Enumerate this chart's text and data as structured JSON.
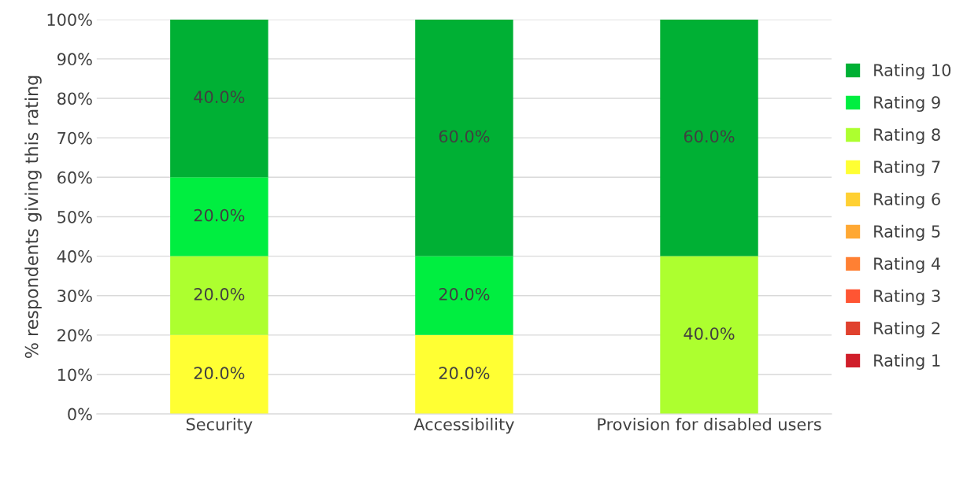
{
  "chart_data": {
    "type": "bar",
    "stacked": true,
    "ylabel": "% respondents giving this rating",
    "categories": [
      "Security",
      "Accessibility",
      "Provision for disabled users"
    ],
    "ylim": [
      0,
      100
    ],
    "yticks": [
      {
        "value": 0,
        "label": "0%"
      },
      {
        "value": 10,
        "label": "10%"
      },
      {
        "value": 20,
        "label": "20%"
      },
      {
        "value": 30,
        "label": "30%"
      },
      {
        "value": 40,
        "label": "40%"
      },
      {
        "value": 50,
        "label": "50%"
      },
      {
        "value": 60,
        "label": "60%"
      },
      {
        "value": 70,
        "label": "70%"
      },
      {
        "value": 80,
        "label": "80%"
      },
      {
        "value": 90,
        "label": "90%"
      },
      {
        "value": 100,
        "label": "100%"
      }
    ],
    "grid": "y",
    "legend": "right",
    "series": [
      {
        "name": "Rating 1",
        "color": "#d01e2a",
        "values": [
          0,
          0,
          0
        ],
        "value_labels": [
          null,
          null,
          null
        ]
      },
      {
        "name": "Rating 2",
        "color": "#e0412e",
        "values": [
          0,
          0,
          0
        ],
        "value_labels": [
          null,
          null,
          null
        ]
      },
      {
        "name": "Rating 3",
        "color": "#ff5533",
        "values": [
          0,
          0,
          0
        ],
        "value_labels": [
          null,
          null,
          null
        ]
      },
      {
        "name": "Rating 4",
        "color": "#ff8033",
        "values": [
          0,
          0,
          0
        ],
        "value_labels": [
          null,
          null,
          null
        ]
      },
      {
        "name": "Rating 5",
        "color": "#ffa833",
        "values": [
          0,
          0,
          0
        ],
        "value_labels": [
          null,
          null,
          null
        ]
      },
      {
        "name": "Rating 6",
        "color": "#ffd033",
        "values": [
          0,
          0,
          0
        ],
        "value_labels": [
          null,
          null,
          null
        ]
      },
      {
        "name": "Rating 7",
        "color": "#ffff33",
        "values": [
          20,
          20,
          0
        ],
        "value_labels": [
          "20.0%",
          "20.0%",
          null
        ]
      },
      {
        "name": "Rating 8",
        "color": "#adff2f",
        "values": [
          20,
          0,
          40
        ],
        "value_labels": [
          "20.0%",
          null,
          "40.0%"
        ]
      },
      {
        "name": "Rating 9",
        "color": "#00ee40",
        "values": [
          20,
          20,
          0
        ],
        "value_labels": [
          "20.0%",
          "20.0%",
          null
        ]
      },
      {
        "name": "Rating 10",
        "color": "#00b034",
        "values": [
          40,
          60,
          60
        ],
        "value_labels": [
          "40.0%",
          "60.0%",
          "60.0%"
        ]
      }
    ]
  }
}
